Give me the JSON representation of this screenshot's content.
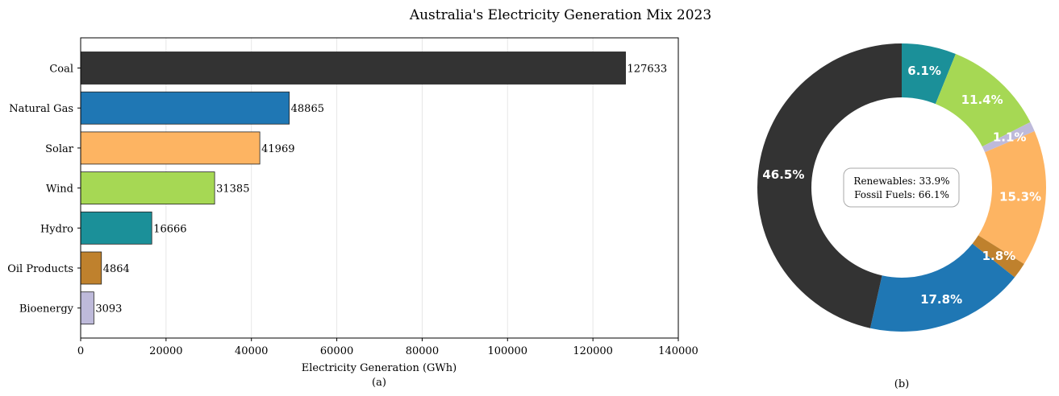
{
  "title": "Australia's Electricity Generation Mix 2023",
  "chart_data": [
    {
      "type": "bar",
      "orientation": "horizontal",
      "panel_label": "(a)",
      "xlabel": "Electricity Generation (GWh)",
      "xlim": [
        0,
        140000
      ],
      "xticks": [
        0,
        20000,
        40000,
        60000,
        80000,
        100000,
        120000,
        140000
      ],
      "grid": "vertical",
      "categories": [
        "Coal",
        "Natural Gas",
        "Solar",
        "Wind",
        "Hydro",
        "Oil Products",
        "Bioenergy"
      ],
      "values": [
        127633,
        48865,
        41969,
        31385,
        16666,
        4864,
        3093
      ],
      "colors": [
        "#333333",
        "#1f77b4",
        "#fdb462",
        "#a6d854",
        "#1b9099",
        "#bf812d",
        "#bebada"
      ]
    },
    {
      "type": "pie",
      "style": "donut",
      "panel_label": "(b)",
      "slices": [
        {
          "label": "6.1%",
          "value": 6.1,
          "color": "#1b9099"
        },
        {
          "label": "11.4%",
          "value": 11.4,
          "color": "#a6d854"
        },
        {
          "label": "1.1%",
          "value": 1.1,
          "color": "#bebada"
        },
        {
          "label": "15.3%",
          "value": 15.3,
          "color": "#fdb462"
        },
        {
          "label": "1.8%",
          "value": 1.8,
          "color": "#bf812d"
        },
        {
          "label": "17.8%",
          "value": 17.8,
          "color": "#1f77b4"
        },
        {
          "label": "46.5%",
          "value": 46.5,
          "color": "#333333"
        }
      ],
      "summary": [
        "Renewables: 33.9%",
        "Fossil Fuels: 66.1%"
      ]
    }
  ]
}
